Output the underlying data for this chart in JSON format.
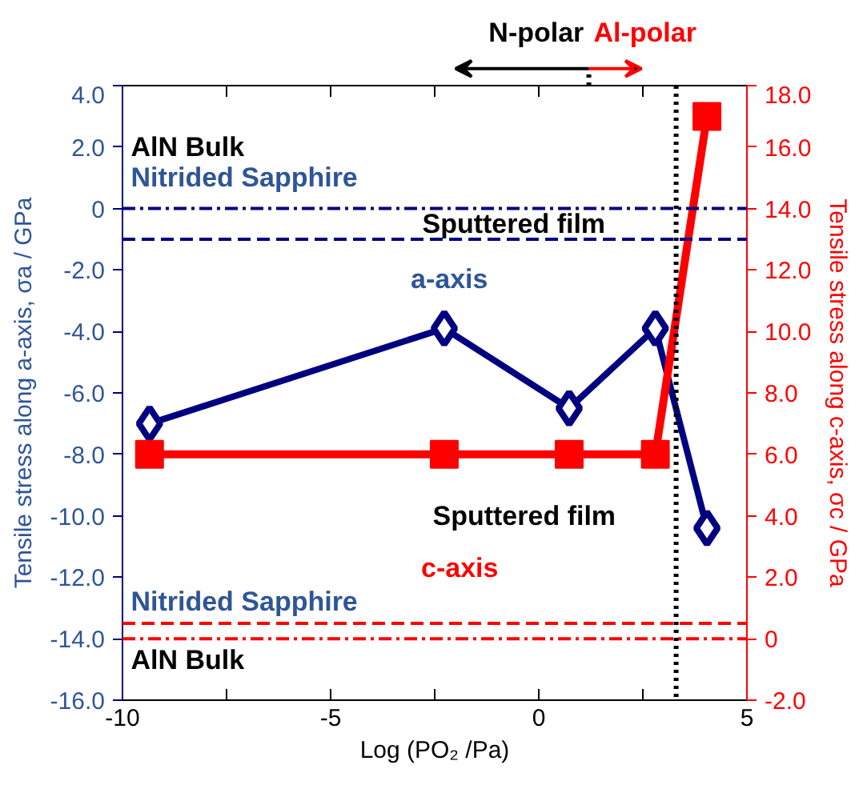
{
  "chart_data": {
    "type": "line",
    "xlabel": "Log (PO₂ /Pa)",
    "ylabel": "Tensile stress along a-axis, σa / GPa",
    "y2label": "Tensile stress along c-axis, σc / GPa",
    "x": [
      -9.35,
      -2.27,
      0.73,
      2.8,
      4.04
    ],
    "series": [
      {
        "color": "#000080",
        "values": [
          -7.0,
          -3.9,
          -6.5,
          -3.9,
          -10.4
        ],
        "marker": "diamond"
      },
      {
        "color": "#ff0000",
        "values": [
          6.0,
          6.0,
          6.0,
          6.0,
          17.0
        ],
        "marker": "square",
        "axis": "y2"
      }
    ],
    "xlim": [
      -10,
      5
    ],
    "xticks": [
      -10,
      {
        "value": -7.5,
        "label": null
      },
      -5,
      {
        "value": -2.5,
        "label": null
      },
      0,
      {
        "value": 2.5,
        "label": null
      },
      5
    ],
    "ylim": [
      -16,
      4
    ],
    "yticks": [
      {
        "value": -16,
        "label": "-16.0"
      },
      {
        "value": -14,
        "label": "-14.0"
      },
      {
        "value": -12,
        "label": "-12.0"
      },
      {
        "value": -10,
        "label": "-10.0"
      },
      {
        "value": -8,
        "label": "-8.0"
      },
      {
        "value": -6,
        "label": "-6.0"
      },
      {
        "value": -4,
        "label": "-4.0"
      },
      {
        "value": -2,
        "label": "-2.0"
      },
      0,
      {
        "value": 2,
        "label": "2.0"
      },
      {
        "value": 4,
        "label": "4.0"
      }
    ],
    "y2lim": [
      -2,
      18
    ],
    "y2ticks": [
      {
        "value": -2,
        "label": "-2.0"
      },
      0,
      {
        "value": 2,
        "label": "2.0"
      },
      {
        "value": 4,
        "label": "4.0"
      },
      {
        "value": 6,
        "label": "6.0"
      },
      {
        "value": 8,
        "label": "8.0"
      },
      {
        "value": 10,
        "label": "10.0"
      },
      {
        "value": 12,
        "label": "12.0"
      },
      {
        "value": 14,
        "label": "14.0"
      },
      {
        "value": 16,
        "label": "16.0"
      },
      {
        "value": 18,
        "label": "18.0"
      }
    ],
    "ref_lines": [
      {
        "axis": "y",
        "value": 0,
        "color": "#000080",
        "line_style": "dashdot"
      },
      {
        "axis": "y",
        "value": -1,
        "color": "#000080",
        "line_style": "dashed"
      },
      {
        "axis": "y2",
        "value": 0.5,
        "color": "#ff0000",
        "line_style": "dashed"
      },
      {
        "axis": "y2",
        "value": 0,
        "color": "#ff0000",
        "line_style": "dashdot"
      },
      {
        "axis": "x",
        "value": 3.3,
        "color": "#000000",
        "line_style": "dotted"
      }
    ],
    "annotations": [
      "N-polar",
      "Al-polar",
      "AlN Bulk",
      "Nitrided Sapphire",
      "Sputtered film",
      "a-axis",
      "Sputtered film",
      "c-axis",
      "Nitrided Sapphire",
      "AlN Bulk"
    ],
    "grid": false,
    "line_style": "solid"
  }
}
